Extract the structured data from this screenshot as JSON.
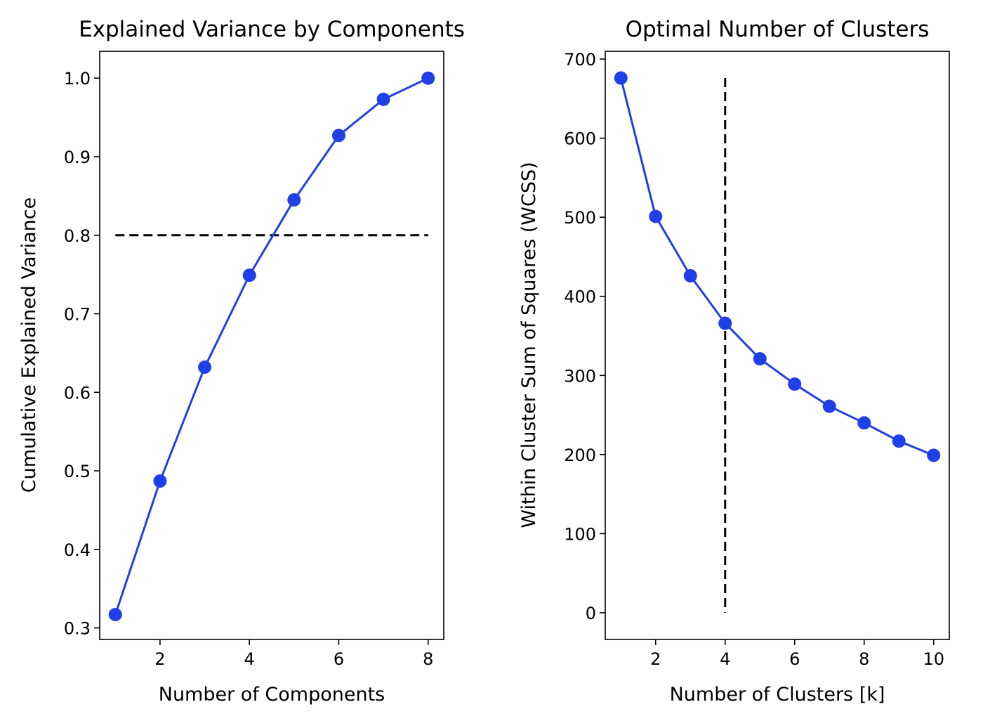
{
  "colors": {
    "series": "#1f3fe8",
    "reference": "#000000"
  },
  "chart_data": [
    {
      "type": "line",
      "title": "Explained Variance by Components",
      "xlabel": "Number of Components",
      "ylabel": "Cumulative Explained Variance",
      "x": [
        1,
        2,
        3,
        4,
        5,
        6,
        7,
        8
      ],
      "values": [
        0.317,
        0.487,
        0.632,
        0.749,
        0.845,
        0.927,
        0.973,
        1.0
      ],
      "marker": "circle",
      "xlim": [
        0.65,
        8.35
      ],
      "ylim": [
        0.2853,
        1.0342
      ],
      "xticks": [
        2,
        4,
        6,
        8
      ],
      "yticks": [
        0.3,
        0.4,
        0.5,
        0.6,
        0.7,
        0.8,
        0.9,
        1.0
      ],
      "xtick_labels": [
        "2",
        "4",
        "6",
        "8"
      ],
      "ytick_labels": [
        "0.3",
        "0.4",
        "0.5",
        "0.6",
        "0.7",
        "0.8",
        "0.9",
        "1.0"
      ],
      "reference_line": {
        "orientation": "horizontal",
        "value": 0.8,
        "from": 1,
        "to": 8,
        "style": "dashed"
      },
      "grid": false,
      "legend": "none"
    },
    {
      "type": "line",
      "title": "Optimal Number of Clusters",
      "xlabel": "Number of Clusters [k]",
      "ylabel": "Within Cluster Sum of Squares (WCSS)",
      "x": [
        1,
        2,
        3,
        4,
        5,
        6,
        7,
        8,
        9,
        10
      ],
      "values": [
        676,
        501,
        426,
        366,
        321,
        289,
        261,
        240,
        217,
        199
      ],
      "marker": "circle",
      "xlim": [
        0.55,
        10.45
      ],
      "ylim": [
        -33.8,
        709.8
      ],
      "xticks": [
        2,
        4,
        6,
        8,
        10
      ],
      "yticks": [
        0,
        100,
        200,
        300,
        400,
        500,
        600,
        700
      ],
      "xtick_labels": [
        "2",
        "4",
        "6",
        "8",
        "10"
      ],
      "ytick_labels": [
        "0",
        "100",
        "200",
        "300",
        "400",
        "500",
        "600",
        "700"
      ],
      "reference_line": {
        "orientation": "vertical",
        "value": 4,
        "from": 0,
        "to": 676,
        "style": "dashed"
      },
      "grid": false,
      "legend": "none"
    }
  ]
}
